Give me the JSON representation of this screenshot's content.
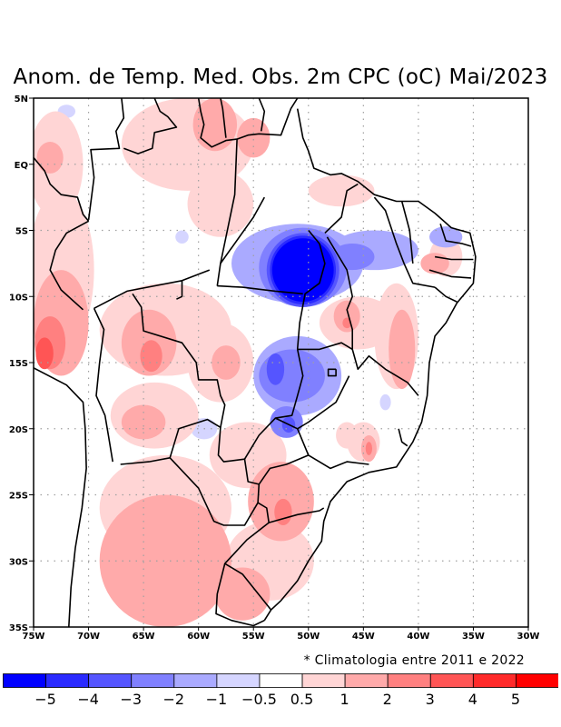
{
  "chart_data": {
    "type": "heatmap",
    "title": "Anom. de Temp. Med. Obs. 2m CPC (oC) Mai/2023",
    "subtitle": "* Climatologia entre 2011 e 2022",
    "xlim": [
      -75,
      -30
    ],
    "ylim": [
      -35,
      5
    ],
    "x_ticks": [
      {
        "value": -75,
        "label": "75W"
      },
      {
        "value": -70,
        "label": "70W"
      },
      {
        "value": -65,
        "label": "65W"
      },
      {
        "value": -60,
        "label": "60W"
      },
      {
        "value": -55,
        "label": "55W"
      },
      {
        "value": -50,
        "label": "50W"
      },
      {
        "value": -45,
        "label": "45W"
      },
      {
        "value": -40,
        "label": "40W"
      },
      {
        "value": -35,
        "label": "35W"
      },
      {
        "value": -30,
        "label": "30W"
      }
    ],
    "y_ticks": [
      {
        "value": 5,
        "label": "5N"
      },
      {
        "value": 0,
        "label": "EQ"
      },
      {
        "value": -5,
        "label": "5S"
      },
      {
        "value": -10,
        "label": "10S"
      },
      {
        "value": -15,
        "label": "15S"
      },
      {
        "value": -20,
        "label": "20S"
      },
      {
        "value": -25,
        "label": "25S"
      },
      {
        "value": -30,
        "label": "30S"
      },
      {
        "value": -35,
        "label": "35S"
      }
    ],
    "grid": true,
    "colorbar": {
      "placement": "bottom",
      "colors": [
        "#0000ff",
        "#2a2aff",
        "#5555ff",
        "#8080ff",
        "#aaaaff",
        "#d5d5ff",
        "#ffffff",
        "#ffd5d5",
        "#ffaaaa",
        "#ff8080",
        "#ff5555",
        "#ff2a2a",
        "#ff0000"
      ],
      "labels": [
        "-5",
        "-4",
        "-3",
        "-2",
        "-1",
        "-0.5",
        "0.5",
        "1",
        "2",
        "3",
        "4",
        "5"
      ]
    },
    "anomaly_regions": [
      {
        "name": "amazon-north",
        "level": 1,
        "center": [
          -61,
          1.5
        ],
        "radius": [
          6,
          3.5
        ]
      },
      {
        "name": "guiana-north",
        "level": 2,
        "center": [
          -58.5,
          3
        ],
        "radius": [
          2,
          2
        ]
      },
      {
        "name": "roraima-east",
        "level": 2,
        "center": [
          -55,
          2
        ],
        "radius": [
          1.5,
          1.5
        ]
      },
      {
        "name": "colombia-west",
        "level": 1,
        "center": [
          -73,
          0
        ],
        "radius": [
          2.5,
          4
        ]
      },
      {
        "name": "colombia-west-core",
        "level": 2,
        "center": [
          -73.5,
          0.5
        ],
        "radius": [
          1.2,
          1.2
        ]
      },
      {
        "name": "amazon-central",
        "level": 1,
        "center": [
          -58,
          -3
        ],
        "radius": [
          3,
          2.5
        ]
      },
      {
        "name": "para-coast",
        "level": 1,
        "center": [
          -47,
          -2
        ],
        "radius": [
          3,
          1.2
        ]
      },
      {
        "name": "peru-west",
        "level": 1,
        "center": [
          -72.5,
          -8
        ],
        "radius": [
          3,
          6
        ]
      },
      {
        "name": "peru-south",
        "level": 2,
        "center": [
          -72.5,
          -12
        ],
        "radius": [
          2.5,
          4
        ]
      },
      {
        "name": "peru-south-core",
        "level": 3,
        "center": [
          -73.5,
          -13.5
        ],
        "radius": [
          1.4,
          2
        ]
      },
      {
        "name": "peru-south-peak",
        "level": 4,
        "center": [
          -74,
          -14.3
        ],
        "radius": [
          0.8,
          1.2
        ]
      },
      {
        "name": "bolivia-north",
        "level": 1,
        "center": [
          -63,
          -12.5
        ],
        "radius": [
          6,
          3.5
        ]
      },
      {
        "name": "bolivia-central",
        "level": 2,
        "center": [
          -64.5,
          -13.5
        ],
        "radius": [
          2.5,
          2.5
        ]
      },
      {
        "name": "bolivia-core",
        "level": 3,
        "center": [
          -64.3,
          -14.5
        ],
        "radius": [
          1,
          1.2
        ]
      },
      {
        "name": "mato-grosso-west",
        "level": 1,
        "center": [
          -58,
          -15
        ],
        "radius": [
          3,
          3
        ]
      },
      {
        "name": "mato-grosso-core",
        "level": 2,
        "center": [
          -57.5,
          -15
        ],
        "radius": [
          1.3,
          1.3
        ]
      },
      {
        "name": "chaco",
        "level": 1,
        "center": [
          -64,
          -19
        ],
        "radius": [
          4,
          2.5
        ]
      },
      {
        "name": "chaco-core",
        "level": 2,
        "center": [
          -65,
          -19.5
        ],
        "radius": [
          2,
          1.3
        ]
      },
      {
        "name": "argentina-north",
        "level": 1,
        "center": [
          -63,
          -26
        ],
        "radius": [
          6,
          4
        ]
      },
      {
        "name": "argentina-central",
        "level": 2,
        "center": [
          -63,
          -30
        ],
        "radius": [
          6,
          5
        ]
      },
      {
        "name": "paraguay-east",
        "level": 1,
        "center": [
          -55.5,
          -22
        ],
        "radius": [
          3.5,
          2.5
        ]
      },
      {
        "name": "parana-south",
        "level": 2,
        "center": [
          -52.5,
          -25.5
        ],
        "radius": [
          3,
          3
        ]
      },
      {
        "name": "parana-core",
        "level": 3,
        "center": [
          -52.3,
          -26.3
        ],
        "radius": [
          0.8,
          1
        ]
      },
      {
        "name": "rio-grande-sul",
        "level": 1,
        "center": [
          -53.5,
          -30
        ],
        "radius": [
          4,
          3
        ]
      },
      {
        "name": "uruguay",
        "level": 2,
        "center": [
          -56,
          -32.5
        ],
        "radius": [
          2.5,
          2
        ]
      },
      {
        "name": "minas-east",
        "level": 1,
        "center": [
          -45.5,
          -12
        ],
        "radius": [
          3.5,
          2
        ]
      },
      {
        "name": "bahia-west",
        "level": 2,
        "center": [
          -46.5,
          -11.5
        ],
        "radius": [
          1.2,
          1.2
        ]
      },
      {
        "name": "bahia-west-core",
        "level": 3,
        "center": [
          -46.5,
          -12
        ],
        "radius": [
          0.4,
          0.4
        ]
      },
      {
        "name": "bahia-coast",
        "level": 1,
        "center": [
          -42,
          -13
        ],
        "radius": [
          2,
          4
        ]
      },
      {
        "name": "bahia-coast-core",
        "level": 2,
        "center": [
          -41.5,
          -14
        ],
        "radius": [
          1.2,
          3
        ]
      },
      {
        "name": "northeast-east",
        "level": 1,
        "center": [
          -37.5,
          -7
        ],
        "radius": [
          1.5,
          1.5
        ]
      },
      {
        "name": "northeast-east-core",
        "level": 2,
        "center": [
          -38.5,
          -7.5
        ],
        "radius": [
          1.3,
          0.8
        ]
      },
      {
        "name": "sao-paulo",
        "level": 1,
        "center": [
          -45,
          -21
        ],
        "radius": [
          1.5,
          1.5
        ]
      },
      {
        "name": "sao-paulo-core",
        "level": 2,
        "center": [
          -44.5,
          -21.5
        ],
        "radius": [
          0.7,
          1
        ]
      },
      {
        "name": "sao-paulo-peak",
        "level": 3,
        "center": [
          -44.5,
          -21.5
        ],
        "radius": [
          0.3,
          0.5
        ]
      },
      {
        "name": "minas-south",
        "level": 1,
        "center": [
          -46.5,
          -20.5
        ],
        "radius": [
          1,
          1
        ]
      },
      {
        "name": "tocantins-cold",
        "level": -1,
        "center": [
          -51,
          -7.5
        ],
        "radius": [
          6,
          3
        ]
      },
      {
        "name": "tocantins-cold-2",
        "level": -2,
        "center": [
          -50.5,
          -7.8
        ],
        "radius": [
          4,
          3
        ]
      },
      {
        "name": "tocantins-cold-3",
        "level": -3,
        "center": [
          -50.5,
          -8
        ],
        "radius": [
          3.3,
          2.8
        ]
      },
      {
        "name": "tocantins-cold-4",
        "level": -4,
        "center": [
          -50.5,
          -8
        ],
        "radius": [
          3,
          2.6
        ]
      },
      {
        "name": "tocantins-cold-5",
        "level": -5,
        "center": [
          -50.5,
          -8
        ],
        "radius": [
          2.8,
          2.4
        ]
      },
      {
        "name": "maranhao-cold",
        "level": -1,
        "center": [
          -44,
          -6.5
        ],
        "radius": [
          4,
          1.5
        ]
      },
      {
        "name": "maranhao-cold-2",
        "level": -2,
        "center": [
          -46,
          -7
        ],
        "radius": [
          2,
          1
        ]
      },
      {
        "name": "piaui-cold",
        "level": -1,
        "center": [
          -37.5,
          -5.5
        ],
        "radius": [
          1.5,
          0.8
        ]
      },
      {
        "name": "goias-cold",
        "level": -1,
        "center": [
          -51,
          -16
        ],
        "radius": [
          4,
          3
        ]
      },
      {
        "name": "goias-cold-2",
        "level": -2,
        "center": [
          -51.5,
          -16
        ],
        "radius": [
          3,
          2
        ]
      },
      {
        "name": "goias-cold-3",
        "level": -3,
        "center": [
          -53,
          -15.5
        ],
        "radius": [
          0.8,
          1.2
        ]
      },
      {
        "name": "ms-cold",
        "level": -2,
        "center": [
          -52,
          -19.5
        ],
        "radius": [
          1.5,
          1.2
        ]
      },
      {
        "name": "ms-cold-3",
        "level": -3,
        "center": [
          -51.8,
          -19.7
        ],
        "radius": [
          0.6,
          0.6
        ]
      },
      {
        "name": "amazon-cold-dot",
        "level": -0.5,
        "center": [
          -72,
          4
        ],
        "radius": [
          0.8,
          0.5
        ]
      },
      {
        "name": "rondonia-cold-dot",
        "level": -0.5,
        "center": [
          -61.5,
          -5.5
        ],
        "radius": [
          0.6,
          0.5
        ]
      },
      {
        "name": "bolivia-cold",
        "level": -0.5,
        "center": [
          -59.5,
          -20
        ],
        "radius": [
          1.2,
          0.8
        ]
      },
      {
        "name": "sp-cold-dot",
        "level": -0.5,
        "center": [
          -43,
          -18
        ],
        "radius": [
          0.5,
          0.6
        ]
      }
    ],
    "borders_visible": true
  }
}
